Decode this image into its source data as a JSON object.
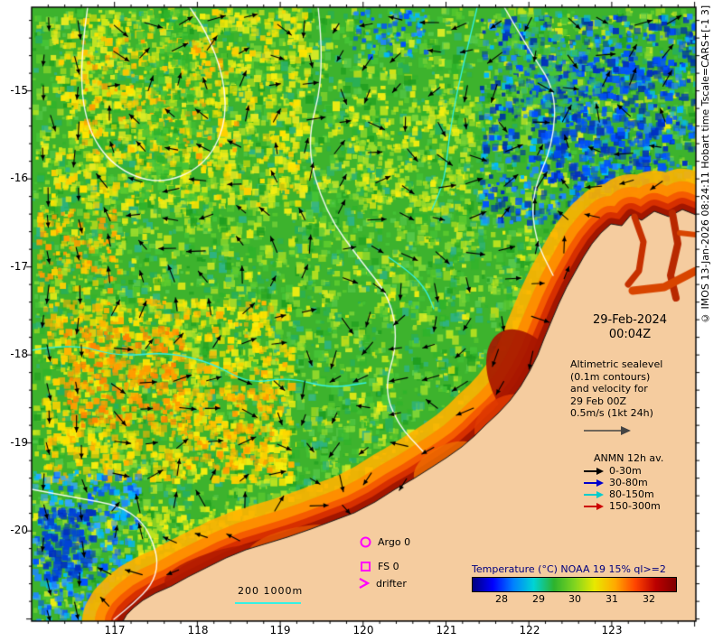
{
  "map": {
    "date": "29-Feb-2024",
    "time": "00:04Z"
  },
  "axis": {
    "lat": [
      "-15",
      "-16",
      "-17",
      "-18",
      "-19",
      "-20"
    ],
    "lon": [
      "117",
      "118",
      "119",
      "120",
      "121",
      "122",
      "123"
    ]
  },
  "annotations": {
    "altimetric_lines": [
      "Altimetric sealevel",
      "(0.1m contours)",
      "and velocity for",
      "29 Feb 00Z",
      "0.5m/s (1kt 24h)"
    ],
    "markers": {
      "argo": "Argo 0",
      "fs": "FS 0",
      "drifter": "drifter"
    },
    "scale_text": "200 1000m"
  },
  "anmn": {
    "title": "ANMN 12h av.",
    "items": [
      {
        "label": "0-30m",
        "color": "#000000"
      },
      {
        "label": "30-80m",
        "color": "#0000cc"
      },
      {
        "label": "80-150m",
        "color": "#00cccc"
      },
      {
        "label": "150-300m",
        "color": "#cc0000"
      }
    ]
  },
  "colorbar": {
    "title": "Temperature (°C) NOAA 19 15% ql>=2",
    "ticks": [
      "28",
      "29",
      "30",
      "31",
      "32"
    ],
    "gradient": [
      "#00007f",
      "#0000ff",
      "#0080ff",
      "#00d4d4",
      "#2db32d",
      "#7fd420",
      "#e8e800",
      "#ffaa00",
      "#ff4400",
      "#bb0000",
      "#7f0000"
    ]
  },
  "copyright": "© IMOS 13-Jan-2026 08:24:11 Hobart time Tscale=CARS+[-1 3]",
  "colors": {
    "land": "#f5cc9f",
    "ocean_base": "#3db32d",
    "magenta": "#ff00ff",
    "contour_white": "#ffffff",
    "contour_cyan": "#35f1e4",
    "arrow_black": "#000000",
    "velocity_arrow_gray": "#444444",
    "coast_band": [
      "#ffb300",
      "#ff8a00",
      "#f45500",
      "#d42a00",
      "#9c1400"
    ]
  }
}
